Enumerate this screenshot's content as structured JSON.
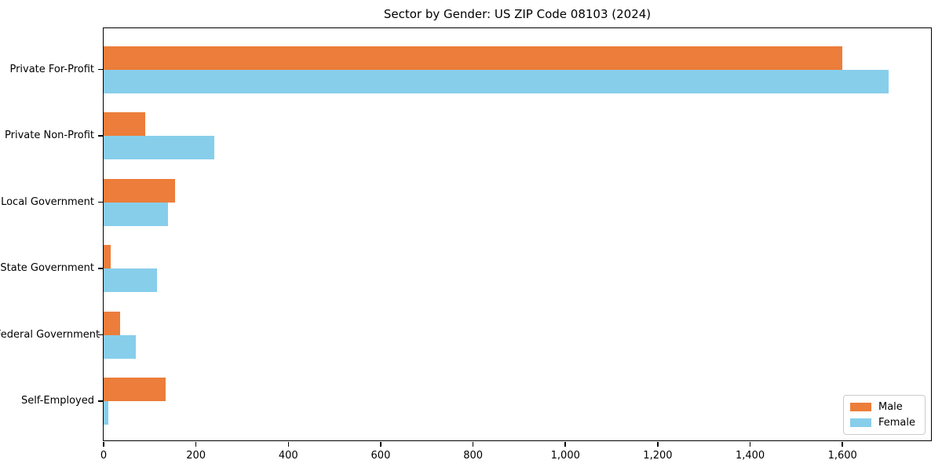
{
  "chart_data": {
    "type": "bar",
    "orientation": "horizontal",
    "title": "Sector by Gender: US ZIP Code 08103 (2024)",
    "categories": [
      "Private For-Profit",
      "Private Non-Profit",
      "Local Government",
      "State Government",
      "Federal Government",
      "Self-Employed"
    ],
    "series": [
      {
        "name": "Male",
        "color": "#EC7D3A",
        "values": [
          1600,
          90,
          155,
          15,
          35,
          135
        ]
      },
      {
        "name": "Female",
        "color": "#87CEEB",
        "values": [
          1700,
          240,
          140,
          115,
          70,
          10
        ]
      }
    ],
    "xlabel": "",
    "ylabel": "",
    "xlim": [
      0,
      1790
    ],
    "xticks": [
      0,
      200,
      400,
      600,
      800,
      1000,
      1200,
      1400,
      1600
    ],
    "xtick_labels": [
      "0",
      "200",
      "400",
      "600",
      "800",
      "1,000",
      "1,200",
      "1,400",
      "1,600"
    ],
    "grid": false,
    "legend_position": "lower right",
    "background_color": "#ffffff",
    "spine_color": "#000000"
  }
}
